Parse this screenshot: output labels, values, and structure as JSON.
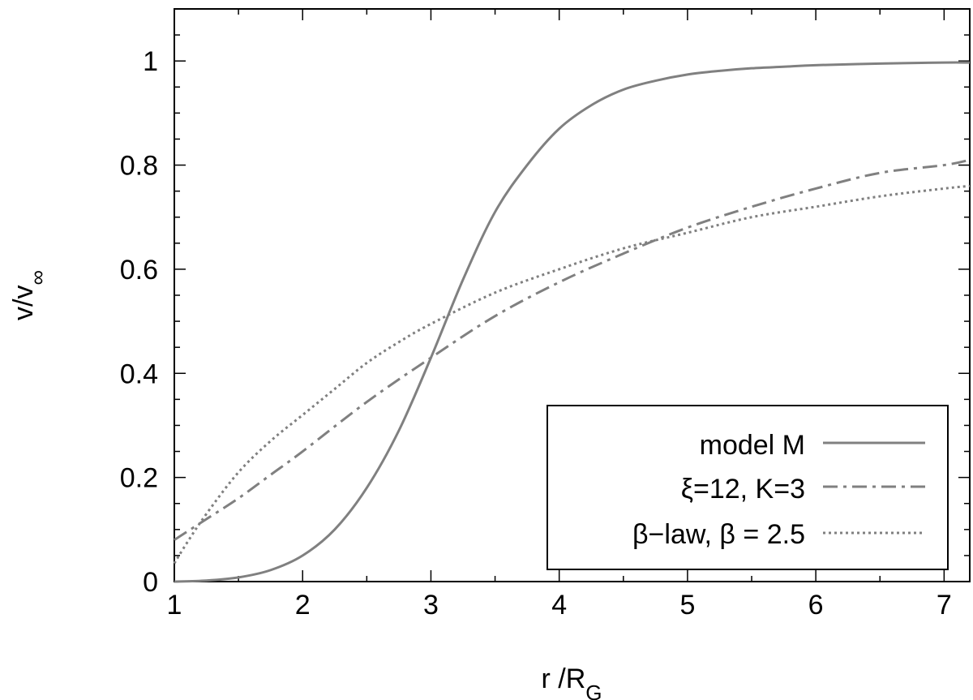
{
  "chart_data": {
    "type": "line",
    "title": "",
    "xlabel": {
      "main": "r /R",
      "sub": "G"
    },
    "ylabel": {
      "main": "v/v",
      "sub": "∞"
    },
    "xlim": [
      1,
      7.2
    ],
    "ylim": [
      0,
      1.1
    ],
    "x_ticks": [
      1,
      2,
      3,
      4,
      5,
      6,
      7
    ],
    "x_tick_labels": [
      "1",
      "2",
      "3",
      "4",
      "5",
      "6",
      "7"
    ],
    "y_ticks": [
      0,
      0.2,
      0.4,
      0.6,
      0.8,
      1
    ],
    "y_tick_labels": [
      "0",
      "0.2",
      "0.4",
      "0.6",
      "0.8",
      "1"
    ],
    "grid": false,
    "legend_position": "bottom-right",
    "series_color": "#808080",
    "series": [
      {
        "name": "model M",
        "style": "solid",
        "x": [
          1.0,
          1.25,
          1.5,
          1.75,
          2.0,
          2.25,
          2.5,
          2.75,
          3.0,
          3.25,
          3.5,
          3.75,
          4.0,
          4.25,
          4.5,
          4.75,
          5.0,
          5.25,
          5.5,
          5.75,
          6.0,
          6.5,
          7.0,
          7.2
        ],
        "y": [
          0.0,
          0.002,
          0.008,
          0.022,
          0.05,
          0.1,
          0.18,
          0.29,
          0.43,
          0.58,
          0.71,
          0.8,
          0.87,
          0.915,
          0.945,
          0.962,
          0.974,
          0.981,
          0.986,
          0.989,
          0.992,
          0.995,
          0.997,
          0.997
        ]
      },
      {
        "name": "ξ=12, K=3",
        "style": "dash-dot",
        "x": [
          1.0,
          1.25,
          1.5,
          1.75,
          2.0,
          2.5,
          3.0,
          3.5,
          4.0,
          4.5,
          5.0,
          5.5,
          6.0,
          6.5,
          7.0,
          7.2
        ],
        "y": [
          0.08,
          0.12,
          0.16,
          0.205,
          0.25,
          0.345,
          0.43,
          0.51,
          0.575,
          0.63,
          0.68,
          0.72,
          0.755,
          0.785,
          0.8,
          0.81
        ]
      },
      {
        "name": "β−law, β = 2.5",
        "style": "dotted",
        "x": [
          1.0,
          1.1,
          1.25,
          1.5,
          1.75,
          2.0,
          2.25,
          2.5,
          2.75,
          3.0,
          3.5,
          4.0,
          4.5,
          5.0,
          5.5,
          6.0,
          6.5,
          7.0,
          7.2
        ],
        "y": [
          0.035,
          0.075,
          0.13,
          0.21,
          0.27,
          0.32,
          0.37,
          0.42,
          0.46,
          0.495,
          0.555,
          0.6,
          0.64,
          0.67,
          0.7,
          0.72,
          0.74,
          0.755,
          0.76
        ]
      }
    ]
  }
}
